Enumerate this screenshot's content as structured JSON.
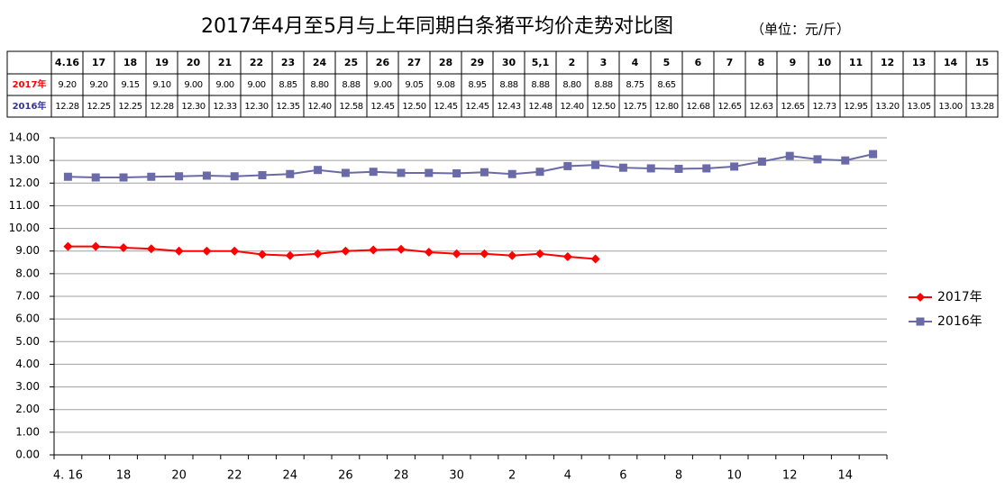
{
  "chart_data": {
    "type": "line",
    "title": "2017年4月至5月与上年同期白条猪平均价走势对比图",
    "subtitle": "（单位：元/斤）",
    "categories": [
      "4.16",
      "17",
      "18",
      "19",
      "20",
      "21",
      "22",
      "23",
      "24",
      "25",
      "26",
      "27",
      "28",
      "29",
      "30",
      "5,1",
      "2",
      "3",
      "4",
      "5",
      "6",
      "7",
      "8",
      "9",
      "10",
      "11",
      "12",
      "13",
      "14",
      "15"
    ],
    "axis_categories": [
      "4. 16",
      null,
      "18",
      null,
      "20",
      null,
      "22",
      null,
      "24",
      null,
      "26",
      null,
      "28",
      null,
      "30",
      null,
      "2",
      null,
      "4",
      null,
      "6",
      null,
      "8",
      null,
      "10",
      null,
      "12",
      null,
      "14",
      null
    ],
    "series": [
      {
        "name": "2017年",
        "color": "#ff0000",
        "marker": "diamond",
        "values": [
          9.2,
          9.2,
          9.15,
          9.1,
          9.0,
          9.0,
          9.0,
          8.85,
          8.8,
          8.88,
          9.0,
          9.05,
          9.08,
          8.95,
          8.88,
          8.88,
          8.8,
          8.88,
          8.75,
          8.65,
          null,
          null,
          null,
          null,
          null,
          null,
          null,
          null,
          null,
          null
        ],
        "value_labels": [
          "9.20",
          "9.20",
          "9.15",
          "9.10",
          "9.00",
          "9.00",
          "9.00",
          "8.85",
          "8.80",
          "8.88",
          "9.00",
          "9.05",
          "9.08",
          "8.95",
          "8.88",
          "8.88",
          "8.80",
          "8.88",
          "8.75",
          "8.65",
          null,
          null,
          null,
          null,
          null,
          null,
          null,
          null,
          null,
          null
        ]
      },
      {
        "name": "2016年",
        "color": "#6a6aa8",
        "marker": "square",
        "values": [
          12.28,
          12.25,
          12.25,
          12.28,
          12.3,
          12.33,
          12.3,
          12.35,
          12.4,
          12.58,
          12.45,
          12.5,
          12.45,
          12.45,
          12.43,
          12.48,
          12.4,
          12.5,
          12.75,
          12.8,
          12.68,
          12.65,
          12.63,
          12.65,
          12.73,
          12.95,
          13.2,
          13.05,
          13.0,
          13.28
        ],
        "value_labels": [
          "12.28",
          "12.25",
          "12.25",
          "12.28",
          "12.30",
          "12.33",
          "12.30",
          "12.35",
          "12.40",
          "12.58",
          "12.45",
          "12.50",
          "12.45",
          "12.45",
          "12.43",
          "12.48",
          "12.40",
          "12.50",
          "12.75",
          "12.80",
          "12.68",
          "12.65",
          "12.63",
          "12.65",
          "12.73",
          "12.95",
          "13.20",
          "13.05",
          "13.00",
          "13.28"
        ]
      }
    ],
    "ylim": [
      0,
      14
    ],
    "yticks": [
      {
        "value": 0,
        "label": "0.00"
      },
      {
        "value": 1,
        "label": "1.00"
      },
      {
        "value": 2,
        "label": "2.00"
      },
      {
        "value": 3,
        "label": "3.00"
      },
      {
        "value": 4,
        "label": "4.00"
      },
      {
        "value": 5,
        "label": "5.00"
      },
      {
        "value": 6,
        "label": "6.00"
      },
      {
        "value": 7,
        "label": "7.00"
      },
      {
        "value": 8,
        "label": "8.00"
      },
      {
        "value": 9,
        "label": "9.00"
      },
      {
        "value": 10,
        "label": "10.00"
      },
      {
        "value": 11,
        "label": "11.00"
      },
      {
        "value": 12,
        "label": "12.00"
      },
      {
        "value": 13,
        "label": "13.00"
      },
      {
        "value": 14,
        "label": "14.00"
      }
    ],
    "grid": true,
    "legend": "right"
  }
}
